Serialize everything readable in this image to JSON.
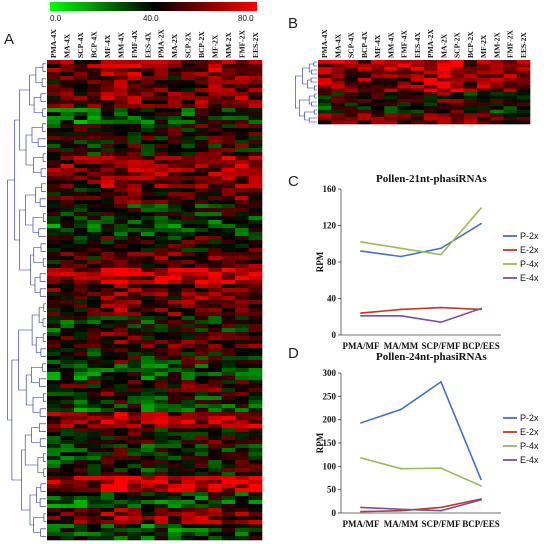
{
  "figure": {
    "color_scale": {
      "labels": [
        "0.0",
        "40.0",
        "80.0"
      ],
      "low_color": "#00ff00",
      "mid_color": "#000000",
      "high_color": "#ff0000"
    }
  },
  "chart_data": [
    {
      "panel": "A",
      "type": "heatmap",
      "columns": [
        "PMA-4X",
        "MA-4X",
        "SCP-4X",
        "BCP-4X",
        "MF-4X",
        "MM-4X",
        "FMF-4X",
        "EES-4X",
        "PMA-2X",
        "MA-2X",
        "SCP-2X",
        "BCP-2X",
        "MF-2X",
        "MM-2X",
        "FMF-2X",
        "EES-2X"
      ],
      "value_range": [
        0,
        80
      ],
      "has_row_dendrogram": true
    },
    {
      "panel": "B",
      "type": "heatmap",
      "columns": [
        "PMA-4X",
        "MA-4X",
        "SCP-4X",
        "BCP-4X",
        "MF-4X",
        "MM-4X",
        "FMF-4X",
        "EES-4X",
        "PMA-2X",
        "MA-2X",
        "SCP-2X",
        "BCP-2X",
        "MF-2X",
        "MM-2X",
        "FMF-2X",
        "EES-2X"
      ],
      "value_range": [
        0,
        80
      ],
      "has_row_dendrogram": true
    },
    {
      "panel": "C",
      "type": "line",
      "title": "Pollen-21nt-phasiRNAs",
      "ylabel": "RPM",
      "categories": [
        "PMA/MF",
        "MA/MM",
        "SCP/FMF",
        "BCP/EES"
      ],
      "ylim": [
        0,
        160
      ],
      "yticks": [
        0,
        40,
        80,
        120,
        160
      ],
      "legend_position": "right",
      "series": [
        {
          "name": "P-2x",
          "color": "#4472c4",
          "values": [
            92,
            86,
            95,
            122
          ]
        },
        {
          "name": "E-2x",
          "color": "#c0392b",
          "values": [
            24,
            28,
            30,
            28
          ]
        },
        {
          "name": "P-4x",
          "color": "#9bbb59",
          "values": [
            102,
            95,
            88,
            139
          ]
        },
        {
          "name": "E-4x",
          "color": "#7a4f9e",
          "values": [
            21,
            21,
            14,
            29
          ]
        }
      ]
    },
    {
      "panel": "D",
      "type": "line",
      "title": "Pollen-24nt-phasiRNAs",
      "ylabel": "RPM",
      "categories": [
        "PMA/MF",
        "MA/MM",
        "SCP/FMF",
        "BCP/EES"
      ],
      "ylim": [
        0,
        300
      ],
      "yticks": [
        0,
        50,
        100,
        150,
        200,
        250,
        300
      ],
      "legend_position": "right",
      "series": [
        {
          "name": "P-2x",
          "color": "#4472c4",
          "values": [
            193,
            222,
            281,
            72
          ]
        },
        {
          "name": "E-2x",
          "color": "#c0392b",
          "values": [
            3,
            5,
            12,
            30
          ]
        },
        {
          "name": "P-4x",
          "color": "#9bbb59",
          "values": [
            118,
            95,
            96,
            58
          ]
        },
        {
          "name": "E-4x",
          "color": "#7a4f9e",
          "values": [
            12,
            8,
            5,
            28
          ]
        }
      ]
    }
  ]
}
